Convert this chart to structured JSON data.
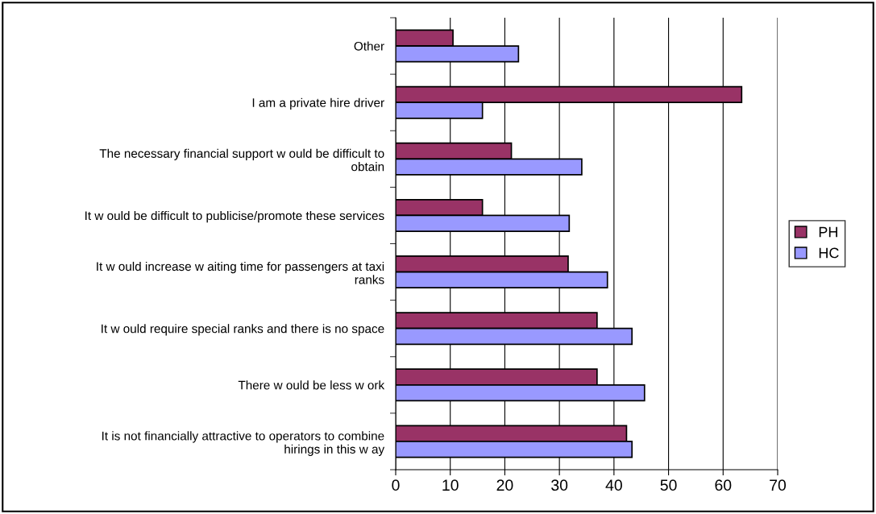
{
  "chart_data": {
    "type": "bar",
    "orientation": "horizontal",
    "categories": [
      "Other",
      "I am a private hire driver",
      "The necessary financial support w ould be difficult to\nobtain",
      "It w ould be difficult to publicise/promote these services",
      "It w ould increase w aiting time for passengers at taxi\nranks",
      "It w ould require special ranks and there is no space",
      "There w ould be less w ork",
      "It is not financially attractive to operators to combine\nhirings in this w ay"
    ],
    "series": [
      {
        "name": "PH",
        "color": "#993366",
        "values": [
          10.5,
          63.4,
          21.2,
          15.9,
          31.6,
          36.9,
          36.9,
          42.3
        ]
      },
      {
        "name": "HC",
        "color": "#9999ff",
        "values": [
          22.5,
          15.9,
          34.1,
          31.8,
          38.8,
          43.3,
          45.6,
          43.3
        ]
      }
    ],
    "xlim": [
      0,
      70
    ],
    "xticks": [
      0,
      10,
      20,
      30,
      40,
      50,
      60,
      70
    ],
    "grid": "x",
    "legend": "right"
  }
}
